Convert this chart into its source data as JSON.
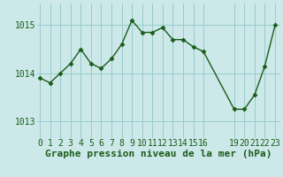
{
  "x": [
    0,
    1,
    2,
    3,
    4,
    5,
    6,
    7,
    8,
    9,
    10,
    11,
    12,
    13,
    14,
    15,
    16,
    19,
    20,
    21,
    22,
    23
  ],
  "y": [
    1013.9,
    1013.8,
    1014.0,
    1014.2,
    1014.5,
    1014.2,
    1014.1,
    1014.3,
    1014.6,
    1015.1,
    1014.85,
    1014.85,
    1014.95,
    1014.7,
    1014.7,
    1014.55,
    1014.45,
    1013.25,
    1013.25,
    1013.55,
    1014.15,
    1015.0
  ],
  "xticks": [
    0,
    1,
    2,
    3,
    4,
    5,
    6,
    7,
    8,
    9,
    10,
    11,
    12,
    13,
    14,
    15,
    16,
    19,
    20,
    21,
    22,
    23
  ],
  "yticks": [
    1013,
    1014,
    1015
  ],
  "ylim": [
    1012.65,
    1015.45
  ],
  "xlim": [
    -0.3,
    23.5
  ],
  "xlabel": "Graphe pression niveau de la mer (hPa)",
  "line_color": "#1a5c1a",
  "marker": "D",
  "marker_size": 2.5,
  "bg_color": "#cce8e8",
  "grid_color": "#99cccc",
  "tick_label_color": "#1a5c1a",
  "xlabel_color": "#1a5c1a",
  "xlabel_fontsize": 8,
  "tick_fontsize": 7,
  "ytick_fontsize": 7
}
